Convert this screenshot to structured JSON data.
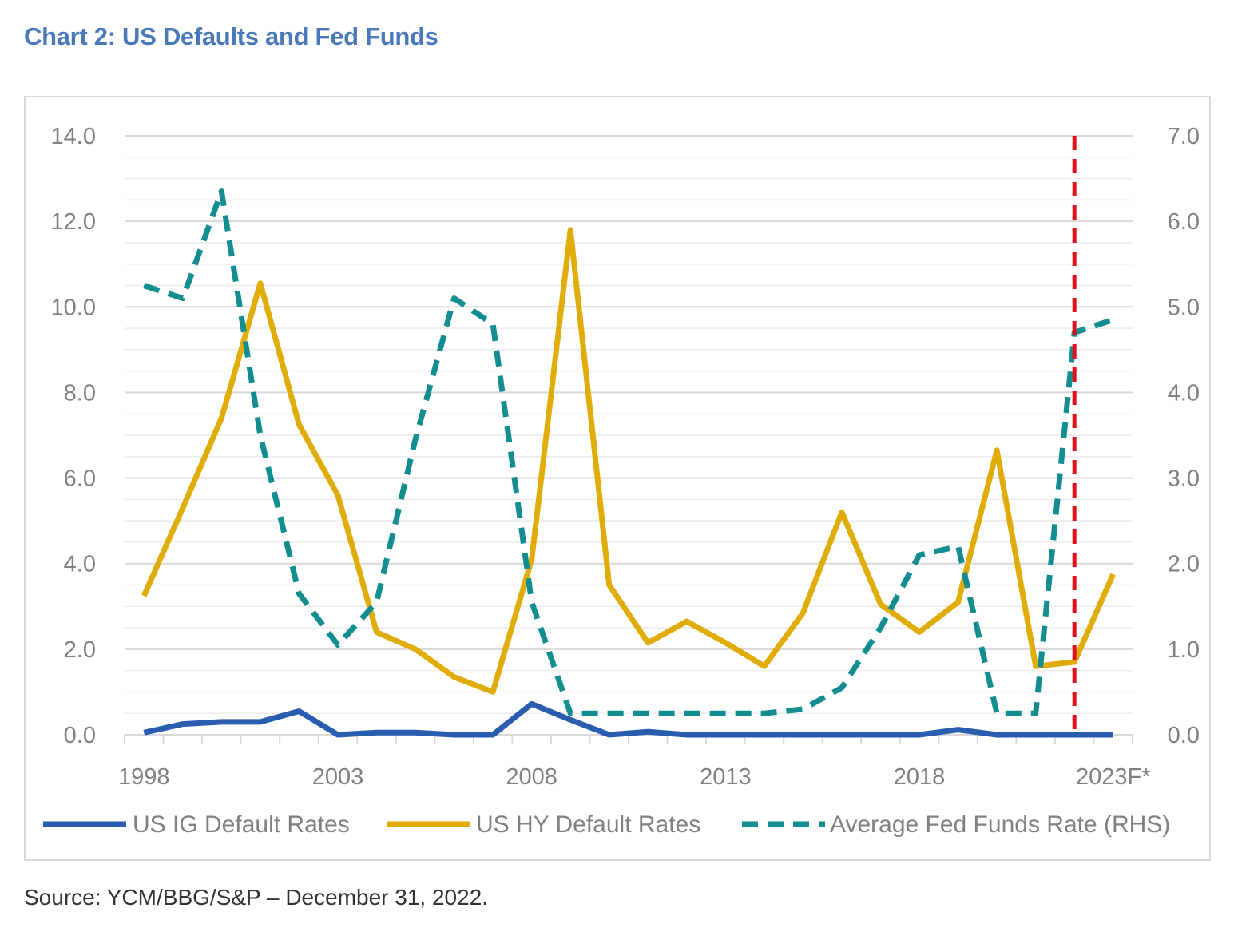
{
  "title": "Chart 2: US Defaults and Fed Funds",
  "source": "Source: YCM/BBG/S&P – December 31, 2022.",
  "colors": {
    "ig": "#2a5db0",
    "hy": "#e0ac08",
    "fed": "#138d90",
    "marker": "#e3101b",
    "title": "#4a78b8",
    "axis_text": "#808080"
  },
  "chart_data": {
    "type": "line",
    "title": "Chart 2: US Defaults and Fed Funds",
    "x": [
      "1998",
      "1999",
      "2000",
      "2001",
      "2002",
      "2003",
      "2004",
      "2005",
      "2006",
      "2007",
      "2008",
      "2009",
      "2010",
      "2011",
      "2012",
      "2013",
      "2014",
      "2015",
      "2016",
      "2017",
      "2018",
      "2019",
      "2020",
      "2021",
      "2022",
      "2023F*"
    ],
    "x_tick_labels": [
      "1998",
      "2003",
      "2008",
      "2013",
      "2018",
      "2023F*"
    ],
    "y_left": {
      "min": 0,
      "max": 14,
      "ticks": [
        "0.0",
        "2.0",
        "4.0",
        "6.0",
        "8.0",
        "10.0",
        "12.0",
        "14.0"
      ]
    },
    "y_right": {
      "min": 0,
      "max": 7,
      "ticks": [
        "0.0",
        "1.0",
        "2.0",
        "3.0",
        "4.0",
        "5.0",
        "6.0",
        "7.0"
      ]
    },
    "grid": true,
    "legend_position": "bottom",
    "vertical_marker": {
      "x": "2022",
      "style": "dashed"
    },
    "series": [
      {
        "name": "US IG Default Rates",
        "axis": "left",
        "style": "solid",
        "values": [
          0.05,
          0.25,
          0.3,
          0.3,
          0.55,
          0.0,
          0.05,
          0.05,
          0.0,
          0.0,
          0.72,
          0.35,
          0.0,
          0.07,
          0.0,
          0.0,
          0.0,
          0.0,
          0.0,
          0.0,
          0.0,
          0.12,
          0.0,
          0.0,
          0.0,
          0.0
        ]
      },
      {
        "name": "US HY Default Rates",
        "axis": "left",
        "style": "solid",
        "values": [
          3.25,
          5.3,
          7.4,
          10.55,
          7.25,
          5.6,
          2.4,
          2.0,
          1.35,
          1.0,
          4.1,
          11.8,
          3.5,
          2.15,
          2.65,
          2.15,
          1.6,
          2.85,
          5.2,
          3.05,
          2.4,
          3.1,
          6.65,
          1.6,
          1.7,
          3.75
        ]
      },
      {
        "name": "Average Fed Funds Rate (RHS)",
        "axis": "right",
        "style": "dashed",
        "values": [
          5.25,
          5.1,
          6.35,
          3.5,
          1.65,
          1.05,
          1.55,
          3.45,
          5.1,
          4.8,
          1.55,
          0.25,
          0.25,
          0.25,
          0.25,
          0.25,
          0.25,
          0.3,
          0.55,
          1.25,
          2.1,
          2.2,
          0.25,
          0.25,
          4.7,
          4.85
        ]
      }
    ]
  }
}
